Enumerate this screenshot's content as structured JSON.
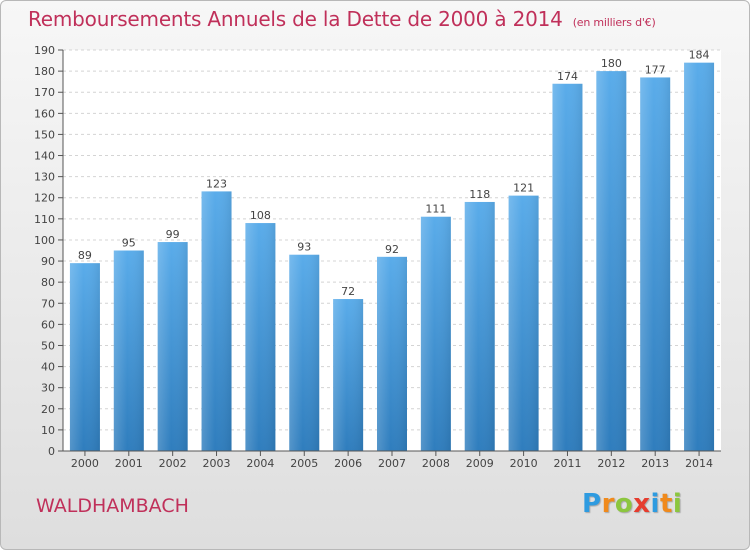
{
  "header": {
    "title": "Remboursements Annuels de la Dette de 2000 à 2014",
    "unit": "(en milliers d'€)"
  },
  "footer": {
    "place": "WALDHAMBACH",
    "logo": [
      "P",
      "r",
      "o",
      "x",
      "i",
      "t",
      "i"
    ],
    "logo_colors": [
      "#2e9be0",
      "#f08a1c",
      "#8cc63f",
      "#e63c2e",
      "#2e9be0",
      "#f08a1c",
      "#8cc63f"
    ]
  },
  "chart_data": {
    "type": "bar",
    "title": "Remboursements Annuels de la Dette de 2000 à 2014",
    "subtitle": "(en milliers d'€)",
    "categories": [
      "2000",
      "2001",
      "2002",
      "2003",
      "2004",
      "2005",
      "2006",
      "2007",
      "2008",
      "2009",
      "2010",
      "2011",
      "2012",
      "2013",
      "2014"
    ],
    "values": [
      89,
      95,
      99,
      123,
      108,
      93,
      72,
      92,
      111,
      118,
      121,
      174,
      180,
      177,
      184
    ],
    "ylim": [
      0,
      190
    ],
    "ytick_step": 10,
    "grid": true,
    "bar_color_top": "#5aacea",
    "bar_color_bottom": "#2f7dbd",
    "xlabel": "",
    "ylabel": ""
  }
}
